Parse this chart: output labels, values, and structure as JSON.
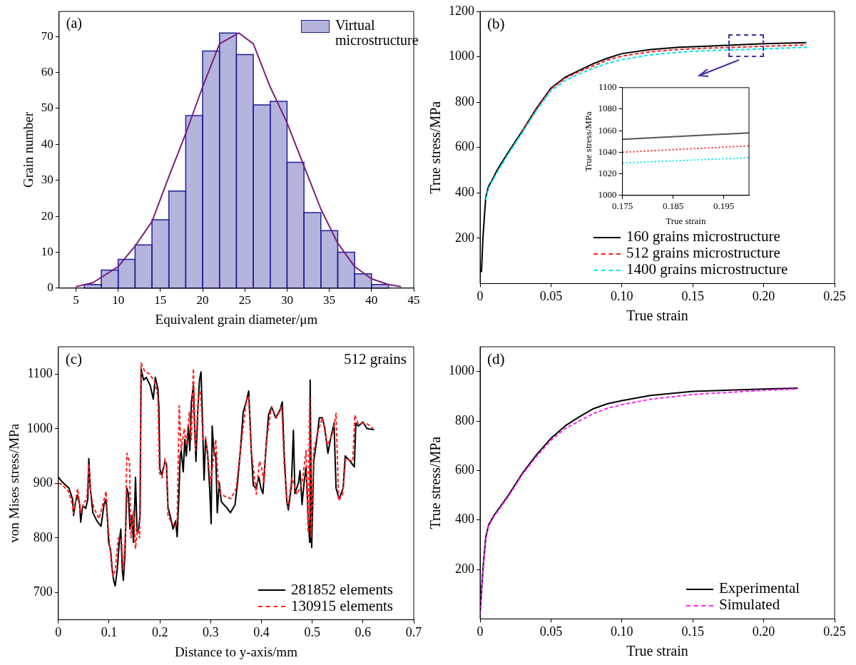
{
  "chart_data": [
    {
      "type": "histogram",
      "title": "(a)",
      "xlabel": "Equivalent grain diameter/μm",
      "ylabel": "Grain number",
      "xlim": [
        3,
        45
      ],
      "xticks": [
        5,
        10,
        15,
        20,
        25,
        30,
        35,
        40,
        45
      ],
      "ylim": [
        0,
        77
      ],
      "yticks": [
        0,
        10,
        20,
        30,
        40,
        50,
        60,
        70
      ],
      "legend": "top right",
      "series": [
        {
          "name": "Virtual microstructure",
          "color": "#1f1f99",
          "bins": [
            6,
            8,
            10,
            12,
            14,
            16,
            18,
            20,
            22,
            24,
            26,
            28,
            30,
            32,
            34,
            36,
            38,
            40,
            42
          ],
          "values": [
            1,
            5,
            8,
            12,
            19,
            27,
            48,
            66,
            71,
            65,
            51,
            52,
            35,
            21,
            16,
            10,
            4,
            1
          ]
        },
        {
          "type": "line",
          "color": "#7b1f7b",
          "x": [
            5,
            7,
            10,
            12,
            14,
            16,
            18,
            20,
            22,
            24.3,
            26,
            28,
            30,
            32,
            34,
            36,
            38,
            40,
            42,
            43.5
          ],
          "values": [
            0.4,
            1.5,
            6,
            11.7,
            18.5,
            31,
            43,
            56,
            68,
            71,
            68,
            56,
            46,
            34,
            22,
            12.5,
            6,
            2.6,
            1,
            0.4
          ]
        }
      ]
    },
    {
      "type": "line",
      "title": "(b)",
      "xlabel": "True strain",
      "ylabel": "True stress/MPa",
      "xlim": [
        0,
        0.25
      ],
      "xticks": [
        0,
        {
          "value": 0.05,
          "label": "0.05"
        },
        {
          "value": 0.1,
          "label": "0.10"
        },
        {
          "value": 0.15,
          "label": "0.15"
        },
        {
          "value": 0.2,
          "label": "0.20"
        },
        {
          "value": 0.25,
          "label": "0.25"
        }
      ],
      "ylim": [
        0,
        1200
      ],
      "yticks": [
        200,
        400,
        600,
        800,
        1000,
        1200
      ],
      "legend": "bottom right",
      "series": [
        {
          "name": "160 grains microstructure",
          "color": "#000000",
          "line_style": "solid",
          "x": [
            0.001,
            0.002,
            0.004,
            0.006,
            0.008,
            0.012,
            0.02,
            0.03,
            0.04,
            0.05,
            0.06,
            0.07,
            0.08,
            0.09,
            0.1,
            0.12,
            0.14,
            0.16,
            0.18,
            0.2,
            0.23
          ],
          "values": [
            50,
            200,
            380,
            430,
            450,
            500,
            580,
            675,
            775,
            862,
            910,
            940,
            970,
            994,
            1014,
            1032,
            1042,
            1047,
            1052,
            1058,
            1062
          ]
        },
        {
          "name": "512 grains microstructure",
          "color": "#ff2020",
          "line_style": "dashed",
          "x": [
            0.03,
            0.04,
            0.05,
            0.06,
            0.07,
            0.08,
            0.09,
            0.1,
            0.12,
            0.14,
            0.16,
            0.18,
            0.2,
            0.23
          ],
          "values": [
            672,
            770,
            858,
            905,
            935,
            960,
            985,
            1003,
            1022,
            1032,
            1038,
            1042,
            1046,
            1052
          ]
        },
        {
          "name": "1400 grains microstructure",
          "color": "#00e5ee",
          "line_style": "dashed",
          "x": [
            0.004,
            0.006,
            0.008,
            0.012,
            0.02,
            0.03,
            0.04,
            0.05,
            0.06,
            0.07,
            0.08,
            0.09,
            0.1,
            0.12,
            0.14,
            0.16,
            0.18,
            0.2,
            0.232
          ],
          "values": [
            370,
            420,
            445,
            490,
            572,
            668,
            765,
            850,
            895,
            925,
            950,
            972,
            988,
            1008,
            1020,
            1027,
            1031,
            1035,
            1042
          ]
        }
      ]
    },
    {
      "type": "line",
      "xlabel": "True strain",
      "ylabel": "True stress/MPa",
      "xlim": [
        0.175,
        0.2
      ],
      "xticks": [
        0.175,
        0.185,
        0.195
      ],
      "ylim": [
        1000,
        1100
      ],
      "yticks": [
        1000,
        1020,
        1040,
        1060,
        1080,
        1100
      ],
      "series": [
        {
          "color": "#555555",
          "line_style": "solid",
          "x": [
            0.175,
            0.2
          ],
          "values": [
            1052,
            1058
          ]
        },
        {
          "color": "#ff2020",
          "line_style": "dotted",
          "x": [
            0.175,
            0.2
          ],
          "values": [
            1040,
            1046
          ]
        },
        {
          "color": "#00e5ee",
          "line_style": "dotted",
          "x": [
            0.175,
            0.2
          ],
          "values": [
            1030,
            1035
          ]
        }
      ]
    },
    {
      "type": "line",
      "title": "(c)",
      "xlabel": "Distance to y-axis/mm",
      "ylabel": "von Mises stress/MPa",
      "annotations": [
        "512 grains"
      ],
      "xlim": [
        0,
        0.7
      ],
      "xticks": [
        0,
        0.1,
        0.2,
        0.3,
        0.4,
        0.5,
        0.6,
        0.7
      ],
      "ylim": [
        650,
        1150
      ],
      "yticks": [
        700,
        800,
        900,
        1000,
        1100
      ],
      "legend": "bottom right",
      "series": [
        {
          "name": "281852 elements",
          "color": "#000000",
          "line_style": "solid",
          "x": [
            0,
            0.007,
            0.021,
            0.028,
            0.03,
            0.034,
            0.038,
            0.042,
            0.044,
            0.048,
            0.054,
            0.058,
            0.06,
            0.063,
            0.068,
            0.076,
            0.084,
            0.09,
            0.094,
            0.097,
            0.099,
            0.103,
            0.106,
            0.109,
            0.112,
            0.116,
            0.12,
            0.123,
            0.126,
            0.128,
            0.131,
            0.135,
            0.138,
            0.141,
            0.145,
            0.148,
            0.152,
            0.155,
            0.158,
            0.161,
            0.163,
            0.168,
            0.173,
            0.181,
            0.187,
            0.191,
            0.196,
            0.198,
            0.2,
            0.204,
            0.21,
            0.213,
            0.216,
            0.22,
            0.226,
            0.231,
            0.234,
            0.237,
            0.24,
            0.242,
            0.246,
            0.249,
            0.252,
            0.256,
            0.259,
            0.262,
            0.266,
            0.268,
            0.271,
            0.275,
            0.278,
            0.281,
            0.284,
            0.287,
            0.29,
            0.294,
            0.298,
            0.301,
            0.303,
            0.307,
            0.31,
            0.313,
            0.317,
            0.321,
            0.331,
            0.339,
            0.348,
            0.353,
            0.359,
            0.364,
            0.37,
            0.375,
            0.38,
            0.384,
            0.389,
            0.395,
            0.399,
            0.403,
            0.409,
            0.414,
            0.42,
            0.428,
            0.437,
            0.441,
            0.445,
            0.45,
            0.453,
            0.459,
            0.463,
            0.466,
            0.473,
            0.476,
            0.48,
            0.484,
            0.488,
            0.492,
            0.495,
            0.496,
            0.499,
            0.503,
            0.509,
            0.514,
            0.52,
            0.525,
            0.531,
            0.536,
            0.543,
            0.547,
            0.553,
            0.561,
            0.565,
            0.575,
            0.583,
            0.586,
            0.591,
            0.6,
            0.608,
            0.622
          ],
          "values": [
            911,
            903,
            891,
            871,
            841,
            866,
            878,
            861,
            829,
            859,
            854,
            871,
            945,
            891,
            846,
            831,
            821,
            861,
            871,
            831,
            792,
            777,
            742,
            722,
            712,
            742,
            792,
            816,
            742,
            722,
            767,
            891,
            881,
            816,
            841,
            792,
            911,
            812,
            816,
            841,
            1109,
            1089,
            1094,
            1079,
            1054,
            1094,
            1074,
            1040,
            926,
            916,
            940,
            935,
            856,
            841,
            816,
            831,
            802,
            866,
            950,
            960,
            921,
            980,
            950,
            1005,
            960,
            1049,
            1079,
            1015,
            940,
            1040,
            1089,
            1104,
            1015,
            906,
            980,
            955,
            891,
            826,
            1005,
            950,
            955,
            846,
            901,
            866,
            856,
            846,
            861,
            901,
            965,
            1030,
            1049,
            1069,
            960,
            896,
            891,
            911,
            891,
            881,
            965,
            1025,
            1040,
            1020,
            1035,
            1049,
            950,
            866,
            851,
            896,
            997,
            881,
            901,
            923,
            861,
            901,
            930,
            841,
            792,
            1089,
            782,
            940,
            980,
            1020,
            1020,
            1000,
            955,
            980,
            1010,
            891,
            871,
            891,
            950,
            940,
            930,
            1010,
            1005,
            1012,
            1000,
            998
          ]
        },
        {
          "name": "130915 elements",
          "color": "#ff2020",
          "line_style": "dashed",
          "x": [
            0,
            0.007,
            0.02,
            0.028,
            0.03,
            0.036,
            0.038,
            0.044,
            0.05,
            0.056,
            0.06,
            0.064,
            0.07,
            0.08,
            0.09,
            0.094,
            0.098,
            0.104,
            0.108,
            0.112,
            0.118,
            0.124,
            0.128,
            0.132,
            0.135,
            0.14,
            0.143,
            0.148,
            0.152,
            0.156,
            0.16,
            0.163,
            0.17,
            0.18,
            0.19,
            0.196,
            0.199,
            0.204,
            0.21,
            0.213,
            0.216,
            0.222,
            0.23,
            0.234,
            0.238,
            0.242,
            0.248,
            0.252,
            0.258,
            0.262,
            0.266,
            0.27,
            0.276,
            0.28,
            0.285,
            0.29,
            0.3,
            0.31,
            0.315,
            0.32,
            0.33,
            0.34,
            0.35,
            0.36,
            0.37,
            0.375,
            0.38,
            0.39,
            0.396,
            0.4,
            0.405,
            0.41,
            0.42,
            0.43,
            0.44,
            0.445,
            0.452,
            0.46,
            0.47,
            0.48,
            0.488,
            0.492,
            0.495,
            0.498,
            0.503,
            0.51,
            0.52,
            0.53,
            0.54,
            0.547,
            0.552,
            0.56,
            0.566,
            0.58,
            0.584,
            0.59,
            0.6,
            0.61,
            0.62
          ],
          "values": [
            900,
            898,
            885,
            860,
            845,
            880,
            890,
            845,
            865,
            870,
            935,
            880,
            855,
            835,
            870,
            885,
            820,
            760,
            730,
            740,
            800,
            800,
            740,
            800,
            955,
            940,
            800,
            850,
            780,
            820,
            800,
            1120,
            1105,
            1100,
            1085,
            1060,
            920,
            910,
            945,
            930,
            840,
            830,
            820,
            830,
            1042,
            960,
            1000,
            970,
            1030,
            980,
            1110,
            960,
            1060,
            1070,
            980,
            985,
            900,
            980,
            900,
            880,
            875,
            872,
            890,
            970,
            1050,
            1060,
            960,
            880,
            940,
            930,
            900,
            980,
            1040,
            1020,
            1040,
            930,
            855,
            910,
            880,
            900,
            960,
            810,
            1060,
            800,
            960,
            990,
            1020,
            970,
            990,
            1028,
            868,
            880,
            945,
            940,
            1025,
            1010,
            1010,
            1008,
            1000
          ]
        }
      ]
    },
    {
      "type": "line",
      "title": "(d)",
      "xlabel": "True strain",
      "ylabel": "True stress/MPa",
      "xlim": [
        0,
        0.25
      ],
      "xticks": [
        0,
        {
          "value": 0.05,
          "label": "0.05"
        },
        {
          "value": 0.1,
          "label": "0.10"
        },
        {
          "value": 0.15,
          "label": "0.15"
        },
        {
          "value": 0.2,
          "label": "0.20"
        },
        {
          "value": 0.25,
          "label": "0.25"
        }
      ],
      "ylim": [
        0,
        1100
      ],
      "yticks": [
        200,
        400,
        600,
        800,
        1000
      ],
      "legend": "bottom right",
      "series": [
        {
          "name": "Experimental",
          "color": "#000000",
          "line_style": "solid",
          "x": [
            0,
            0.002,
            0.004,
            0.006,
            0.01,
            0.02,
            0.03,
            0.04,
            0.05,
            0.06,
            0.07,
            0.08,
            0.09,
            0.1,
            0.12,
            0.15,
            0.2,
            0.224
          ],
          "values": [
            20,
            200,
            330,
            380,
            420,
            500,
            590,
            665,
            730,
            780,
            817,
            850,
            870,
            882,
            903,
            920,
            929,
            933
          ]
        },
        {
          "name": "Simulated",
          "color": "#ff20ff",
          "line_style": "dashed",
          "x": [
            0,
            0.002,
            0.004,
            0.006,
            0.01,
            0.02,
            0.03,
            0.04,
            0.05,
            0.06,
            0.07,
            0.08,
            0.09,
            0.1,
            0.12,
            0.15,
            0.2,
            0.224
          ],
          "values": [
            20,
            190,
            320,
            375,
            415,
            495,
            585,
            658,
            722,
            770,
            800,
            830,
            852,
            866,
            888,
            907,
            924,
            930
          ]
        }
      ]
    }
  ]
}
